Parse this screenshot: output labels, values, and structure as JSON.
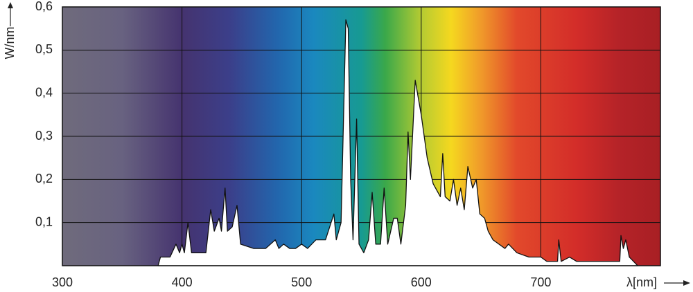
{
  "chart_data": {
    "type": "area",
    "y_label": "W/nm",
    "x_label": "λ[nm]",
    "color": "#ffffff",
    "line_color": "#111111",
    "grid": true,
    "xlim": [
      300,
      800
    ],
    "ylim": [
      0,
      0.6
    ],
    "xticks": [
      300,
      400,
      500,
      600,
      700
    ],
    "yticks": [
      {
        "value": 0.1,
        "label": "0,1"
      },
      {
        "value": 0.2,
        "label": "0,2"
      },
      {
        "value": 0.3,
        "label": "0,3"
      },
      {
        "value": 0.4,
        "label": "0,4"
      },
      {
        "value": 0.5,
        "label": "0,5"
      },
      {
        "value": 0.6,
        "label": "0,6"
      }
    ],
    "x": [
      380,
      382,
      390,
      395,
      398,
      400,
      402,
      405,
      408,
      420,
      424,
      427,
      431,
      433,
      436,
      438,
      442,
      446,
      449,
      460,
      470,
      478,
      481,
      485,
      490,
      495,
      500,
      505,
      512,
      520,
      527,
      529,
      533,
      537,
      539,
      541,
      543,
      546,
      548,
      552,
      556,
      559,
      562,
      566,
      569,
      572,
      577,
      580,
      583,
      587,
      589,
      591,
      595,
      600,
      605,
      610,
      616,
      618,
      620,
      624,
      627,
      630,
      633,
      636,
      639,
      643,
      646,
      649,
      653,
      656,
      660,
      670,
      673,
      680,
      690,
      700,
      705,
      714,
      715,
      717,
      724,
      730,
      740,
      760,
      766,
      767,
      769,
      771,
      774,
      781
    ],
    "values": [
      0,
      0.02,
      0.02,
      0.05,
      0.03,
      0.05,
      0.03,
      0.1,
      0.03,
      0.03,
      0.13,
      0.08,
      0.11,
      0.08,
      0.18,
      0.08,
      0.09,
      0.14,
      0.05,
      0.04,
      0.04,
      0.06,
      0.04,
      0.05,
      0.04,
      0.04,
      0.05,
      0.04,
      0.06,
      0.06,
      0.12,
      0.06,
      0.1,
      0.57,
      0.55,
      0.2,
      0.06,
      0.34,
      0.05,
      0.03,
      0.06,
      0.17,
      0.05,
      0.05,
      0.18,
      0.05,
      0.11,
      0.11,
      0.05,
      0.14,
      0.31,
      0.2,
      0.43,
      0.35,
      0.25,
      0.19,
      0.16,
      0.26,
      0.16,
      0.15,
      0.2,
      0.14,
      0.18,
      0.13,
      0.23,
      0.18,
      0.2,
      0.12,
      0.11,
      0.08,
      0.06,
      0.04,
      0.05,
      0.03,
      0.02,
      0.02,
      0.01,
      0.01,
      0.06,
      0.01,
      0.02,
      0.01,
      0.01,
      0.01,
      0.01,
      0.07,
      0.04,
      0.06,
      0.02,
      0
    ]
  }
}
